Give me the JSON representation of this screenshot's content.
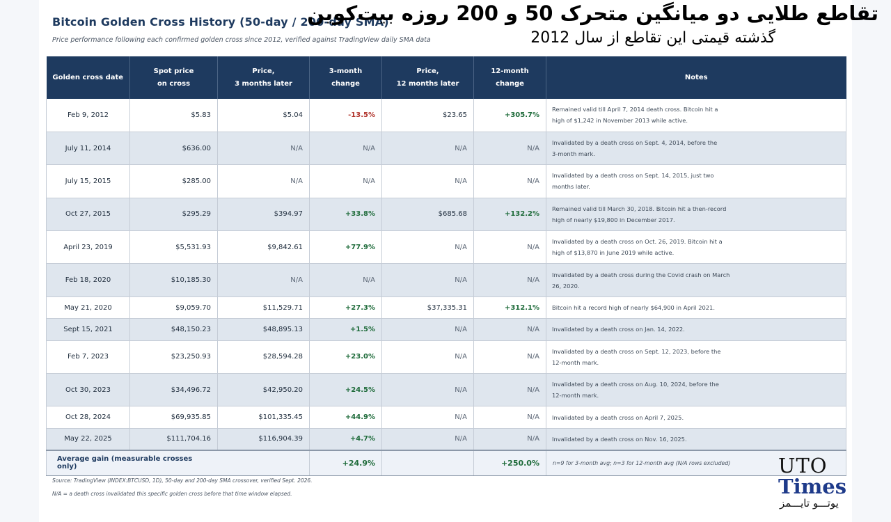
{
  "header": {
    "title_en": "Bitcoin Golden Cross History (50-day / 200-day SMA)",
    "subtitle_en": "Price performance following each confirmed golden cross since 2012, verified against TradingView daily SMA data",
    "title_fa": "تقاطع طلایی دو میانگین متحرک 50 و 200 روزه بیت‌کوین",
    "subtitle_fa": "گذشته قیمتی این تقاطع از سال 2012"
  },
  "table": {
    "columns": [
      {
        "line1": "Golden cross date",
        "line2": ""
      },
      {
        "line1": "Spot price",
        "line2": "on cross"
      },
      {
        "line1": "Price,",
        "line2": "3 months later"
      },
      {
        "line1": "3-month",
        "line2": "change"
      },
      {
        "line1": "Price,",
        "line2": "12 months later"
      },
      {
        "line1": "12-month",
        "line2": "change"
      },
      {
        "line1": "Notes",
        "line2": ""
      }
    ],
    "rows": [
      {
        "date": "Feb 9, 2012",
        "spot": "$5.83",
        "p3": "$5.04",
        "c3": "-13.5%",
        "p12": "$23.65",
        "c12": "+305.7%",
        "note1": "Remained valid till April 7, 2014 death cross. Bitcoin hit a",
        "note2": "high of $1,242 in November 2013 while active."
      },
      {
        "date": "July 11, 2014",
        "spot": "$636.00",
        "p3": "N/A",
        "c3": "N/A",
        "p12": "N/A",
        "c12": "N/A",
        "note1": "Invalidated by a death cross on Sept. 4, 2014, before the",
        "note2": "3-month mark."
      },
      {
        "date": "July 15, 2015",
        "spot": "$285.00",
        "p3": "N/A",
        "c3": "N/A",
        "p12": "N/A",
        "c12": "N/A",
        "note1": "Invalidated by a death cross on Sept. 14, 2015, just two",
        "note2": "months later."
      },
      {
        "date": "Oct 27, 2015",
        "spot": "$295.29",
        "p3": "$394.97",
        "c3": "+33.8%",
        "p12": "$685.68",
        "c12": "+132.2%",
        "note1": "Remained valid till March 30, 2018. Bitcoin hit a then-record",
        "note2": "high of nearly $19,800 in December 2017."
      },
      {
        "date": "April 23, 2019",
        "spot": "$5,531.93",
        "p3": "$9,842.61",
        "c3": "+77.9%",
        "p12": "N/A",
        "c12": "N/A",
        "note1": "Invalidated by a death cross on Oct. 26, 2019. Bitcoin hit a",
        "note2": "high of $13,870 in June 2019 while active."
      },
      {
        "date": "Feb 18, 2020",
        "spot": "$10,185.30",
        "p3": "N/A",
        "c3": "N/A",
        "p12": "N/A",
        "c12": "N/A",
        "note1": "Invalidated by a death cross during the Covid crash on March",
        "note2": "26, 2020."
      },
      {
        "date": "May 21, 2020",
        "spot": "$9,059.70",
        "p3": "$11,529.71",
        "c3": "+27.3%",
        "p12": "$37,335.31",
        "c12": "+312.1%",
        "note1": "Bitcoin hit a record high of nearly $64,900 in April 2021.",
        "note2": ""
      },
      {
        "date": "Sept 15, 2021",
        "spot": "$48,150.23",
        "p3": "$48,895.13",
        "c3": "+1.5%",
        "p12": "N/A",
        "c12": "N/A",
        "note1": "Invalidated by a death cross on Jan. 14, 2022.",
        "note2": ""
      },
      {
        "date": "Feb 7, 2023",
        "spot": "$23,250.93",
        "p3": "$28,594.28",
        "c3": "+23.0%",
        "p12": "N/A",
        "c12": "N/A",
        "note1": "Invalidated by a death cross on Sept. 12, 2023, before the",
        "note2": "12-month mark."
      },
      {
        "date": "Oct 30, 2023",
        "spot": "$34,496.72",
        "p3": "$42,950.20",
        "c3": "+24.5%",
        "p12": "N/A",
        "c12": "N/A",
        "note1": "Invalidated by a death cross on Aug. 10, 2024, before the",
        "note2": "12-month mark."
      },
      {
        "date": "Oct 28, 2024",
        "spot": "$69,935.85",
        "p3": "$101,335.45",
        "c3": "+44.9%",
        "p12": "N/A",
        "c12": "N/A",
        "note1": "Invalidated by a death cross on April 7, 2025.",
        "note2": ""
      },
      {
        "date": "May 22, 2025",
        "spot": "$111,704.16",
        "p3": "$116,904.39",
        "c3": "+4.7%",
        "p12": "N/A",
        "c12": "N/A",
        "note1": "Invalidated by a death cross on Nov. 16, 2025.",
        "note2": ""
      }
    ],
    "average": {
      "label": "Average gain (measurable crosses only)",
      "c3": "+24.9%",
      "c12": "+250.0%",
      "note": "n=9 for 3-month avg; n=3 for 12-month avg (N/A rows excluded)"
    }
  },
  "footer": {
    "source": "Source: TradingView (INDEX:BTCUSD, 1D), 50-day and 200-day SMA crossover, verified Sept. 2026.",
    "na_note": "N/A = a death cross invalidated this specific golden cross before that time window elapsed."
  },
  "brand": {
    "line1": "UTO",
    "line2": "Times",
    "fa": "یوتـــو تایـــمز"
  },
  "colors": {
    "header_bg": "#1e3a5f",
    "alt_row": "#dfe6ee",
    "positive": "#1e6b3a",
    "negative": "#b0322a"
  }
}
